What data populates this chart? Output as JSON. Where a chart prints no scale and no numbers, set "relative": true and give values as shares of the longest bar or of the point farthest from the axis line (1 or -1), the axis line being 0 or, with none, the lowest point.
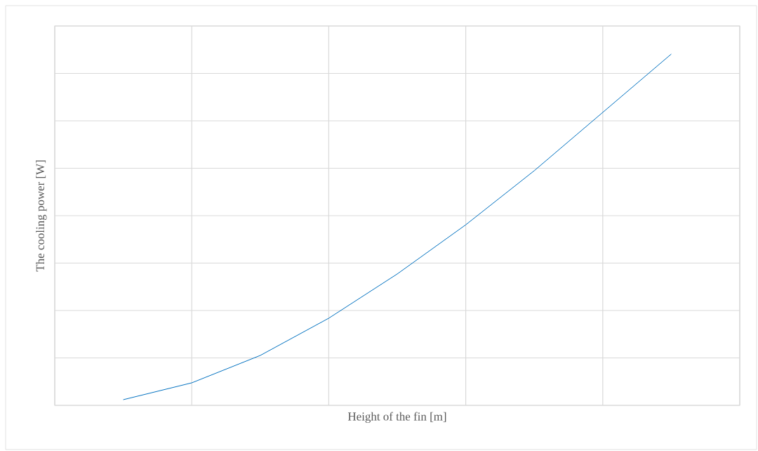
{
  "chart_data": {
    "type": "line",
    "xlabel": "Height of the fin [m]",
    "ylabel": "The cooling power [W]",
    "relative": true,
    "grid": true,
    "categories": [
      null,
      null,
      null,
      null,
      null,
      null,
      null,
      null,
      null
    ],
    "series": [
      {
        "color": "#0070c0",
        "values": [
          0.016,
          0.064,
          0.142,
          0.248,
          0.374,
          0.514,
          0.668,
          0.834,
          1.0
        ]
      }
    ]
  }
}
